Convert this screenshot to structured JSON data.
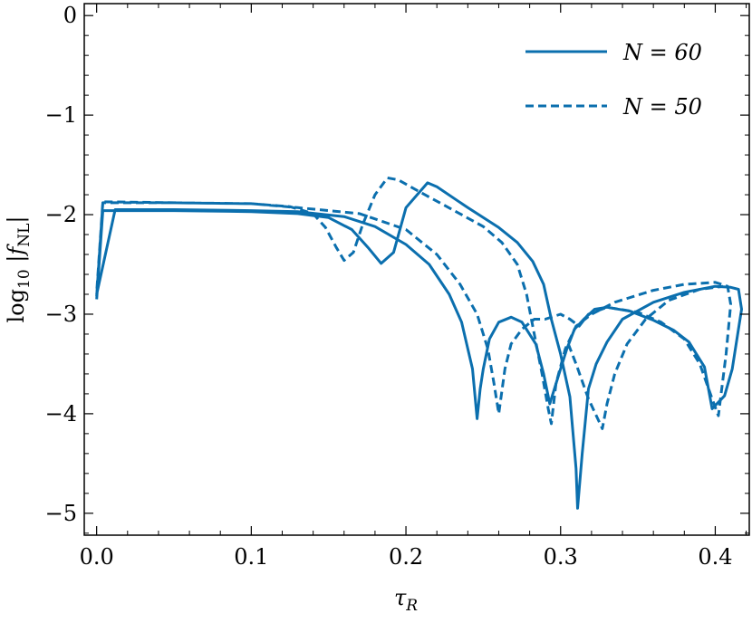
{
  "chart_data": {
    "type": "line",
    "xlabel": "τ_R",
    "ylabel": "log10 |f_NL|",
    "xlim": [
      -0.008,
      0.422
    ],
    "ylim": [
      -5.22,
      0.12
    ],
    "xticks": [
      0.0,
      0.1,
      0.2,
      0.3,
      0.4
    ],
    "xtick_labels": [
      "0.0",
      "0.1",
      "0.2",
      "0.3",
      "0.4"
    ],
    "yticks": [
      0,
      -1,
      -2,
      -3,
      -4,
      -5
    ],
    "ytick_labels": [
      "0",
      "−1",
      "−2",
      "−3",
      "−4",
      "−5"
    ],
    "grid": false,
    "legend_position": "top-right",
    "color": "#0b6fae",
    "series": [
      {
        "name": "N = 60",
        "legend_label": "N = 60",
        "style": "solid",
        "branches": [
          [
            [
              0.0,
              -2.85
            ],
            [
              0.004,
              -1.96
            ],
            [
              0.05,
              -1.96
            ],
            [
              0.1,
              -1.97
            ],
            [
              0.13,
              -1.99
            ],
            [
              0.15,
              -2.03
            ],
            [
              0.165,
              -2.15
            ],
            [
              0.176,
              -2.34
            ],
            [
              0.184,
              -2.49
            ],
            [
              0.192,
              -2.38
            ],
            [
              0.2,
              -1.93
            ],
            [
              0.214,
              -1.68
            ],
            [
              0.22,
              -1.72
            ],
            [
              0.24,
              -1.93
            ],
            [
              0.26,
              -2.13
            ],
            [
              0.272,
              -2.28
            ],
            [
              0.282,
              -2.47
            ],
            [
              0.289,
              -2.7
            ],
            [
              0.294,
              -3.05
            ],
            [
              0.3,
              -3.4
            ],
            [
              0.306,
              -3.83
            ],
            [
              0.31,
              -4.55
            ],
            [
              0.311,
              -4.95
            ],
            [
              0.314,
              -4.4
            ],
            [
              0.318,
              -3.75
            ],
            [
              0.323,
              -3.5
            ],
            [
              0.33,
              -3.28
            ],
            [
              0.34,
              -3.05
            ],
            [
              0.36,
              -2.88
            ],
            [
              0.38,
              -2.78
            ],
            [
              0.4,
              -2.72
            ],
            [
              0.41,
              -2.73
            ],
            [
              0.415,
              -2.75
            ],
            [
              0.417,
              -2.95
            ],
            [
              0.411,
              -3.55
            ],
            [
              0.406,
              -3.82
            ],
            [
              0.398,
              -3.95
            ],
            [
              0.393,
              -3.53
            ],
            [
              0.383,
              -3.28
            ],
            [
              0.373,
              -3.16
            ],
            [
              0.36,
              -3.06
            ],
            [
              0.345,
              -2.97
            ],
            [
              0.33,
              -2.93
            ],
            [
              0.322,
              -2.95
            ],
            [
              0.315,
              -3.05
            ],
            [
              0.309,
              -3.15
            ],
            [
              0.304,
              -3.35
            ],
            [
              0.298,
              -3.65
            ],
            [
              0.293,
              -3.9
            ],
            [
              0.289,
              -3.6
            ],
            [
              0.284,
              -3.3
            ],
            [
              0.275,
              -3.08
            ],
            [
              0.268,
              -3.03
            ],
            [
              0.26,
              -3.08
            ],
            [
              0.254,
              -3.25
            ],
            [
              0.25,
              -3.55
            ],
            [
              0.248,
              -3.75
            ],
            [
              0.246,
              -4.05
            ],
            [
              0.243,
              -3.55
            ],
            [
              0.236,
              -3.08
            ],
            [
              0.228,
              -2.8
            ],
            [
              0.215,
              -2.5
            ],
            [
              0.2,
              -2.3
            ],
            [
              0.18,
              -2.12
            ],
            [
              0.16,
              -2.02
            ],
            [
              0.13,
              -1.97
            ],
            [
              0.1,
              -1.96
            ],
            [
              0.05,
              -1.95
            ],
            [
              0.012,
              -1.95
            ],
            [
              0.0,
              -2.8
            ]
          ]
        ]
      },
      {
        "name": "N = 50",
        "legend_label": "N = 50",
        "style": "dashed",
        "branches": [
          [
            [
              0.0,
              -2.82
            ],
            [
              0.004,
              -1.88
            ],
            [
              0.05,
              -1.88
            ],
            [
              0.1,
              -1.89
            ],
            [
              0.125,
              -1.92
            ],
            [
              0.14,
              -1.99
            ],
            [
              0.148,
              -2.13
            ],
            [
              0.155,
              -2.33
            ],
            [
              0.16,
              -2.46
            ],
            [
              0.166,
              -2.38
            ],
            [
              0.172,
              -2.1
            ],
            [
              0.18,
              -1.8
            ],
            [
              0.188,
              -1.63
            ],
            [
              0.195,
              -1.65
            ],
            [
              0.21,
              -1.78
            ],
            [
              0.23,
              -1.95
            ],
            [
              0.25,
              -2.12
            ],
            [
              0.262,
              -2.28
            ],
            [
              0.272,
              -2.5
            ],
            [
              0.278,
              -2.8
            ],
            [
              0.283,
              -3.2
            ],
            [
              0.288,
              -3.6
            ],
            [
              0.292,
              -3.95
            ],
            [
              0.294,
              -4.1
            ],
            [
              0.297,
              -3.7
            ],
            [
              0.303,
              -3.35
            ],
            [
              0.31,
              -3.12
            ],
            [
              0.32,
              -3.0
            ],
            [
              0.335,
              -2.88
            ],
            [
              0.36,
              -2.76
            ],
            [
              0.38,
              -2.7
            ],
            [
              0.4,
              -2.68
            ],
            [
              0.408,
              -2.72
            ],
            [
              0.41,
              -2.9
            ],
            [
              0.407,
              -3.4
            ],
            [
              0.402,
              -4.02
            ],
            [
              0.398,
              -3.85
            ],
            [
              0.39,
              -3.5
            ],
            [
              0.38,
              -3.25
            ],
            [
              0.365,
              -3.08
            ],
            [
              0.35,
              -2.98
            ],
            [
              0.33,
              -2.93
            ],
            [
              0.318,
              -3.0
            ],
            [
              0.312,
              -3.12
            ],
            [
              0.306,
              -3.05
            ],
            [
              0.3,
              -3.0
            ],
            [
              0.29,
              -3.05
            ],
            [
              0.283,
              -3.05
            ],
            [
              0.275,
              -3.15
            ],
            [
              0.268,
              -3.3
            ],
            [
              0.264,
              -3.55
            ],
            [
              0.26,
              -4.0
            ],
            [
              0.257,
              -3.7
            ],
            [
              0.253,
              -3.35
            ],
            [
              0.246,
              -3.0
            ],
            [
              0.235,
              -2.7
            ],
            [
              0.22,
              -2.4
            ],
            [
              0.2,
              -2.15
            ],
            [
              0.17,
              -1.99
            ],
            [
              0.13,
              -1.93
            ],
            [
              0.1,
              -1.89
            ],
            [
              0.05,
              -1.88
            ],
            [
              0.004,
              -1.87
            ],
            [
              0.0,
              -2.78
            ]
          ],
          [
            [
              0.305,
              -3.3
            ],
            [
              0.31,
              -3.5
            ],
            [
              0.318,
              -3.85
            ],
            [
              0.324,
              -4.05
            ],
            [
              0.327,
              -4.15
            ],
            [
              0.33,
              -3.9
            ],
            [
              0.335,
              -3.6
            ],
            [
              0.343,
              -3.3
            ],
            [
              0.355,
              -3.05
            ],
            [
              0.37,
              -2.86
            ],
            [
              0.39,
              -2.75
            ],
            [
              0.405,
              -2.72
            ]
          ]
        ]
      }
    ]
  }
}
